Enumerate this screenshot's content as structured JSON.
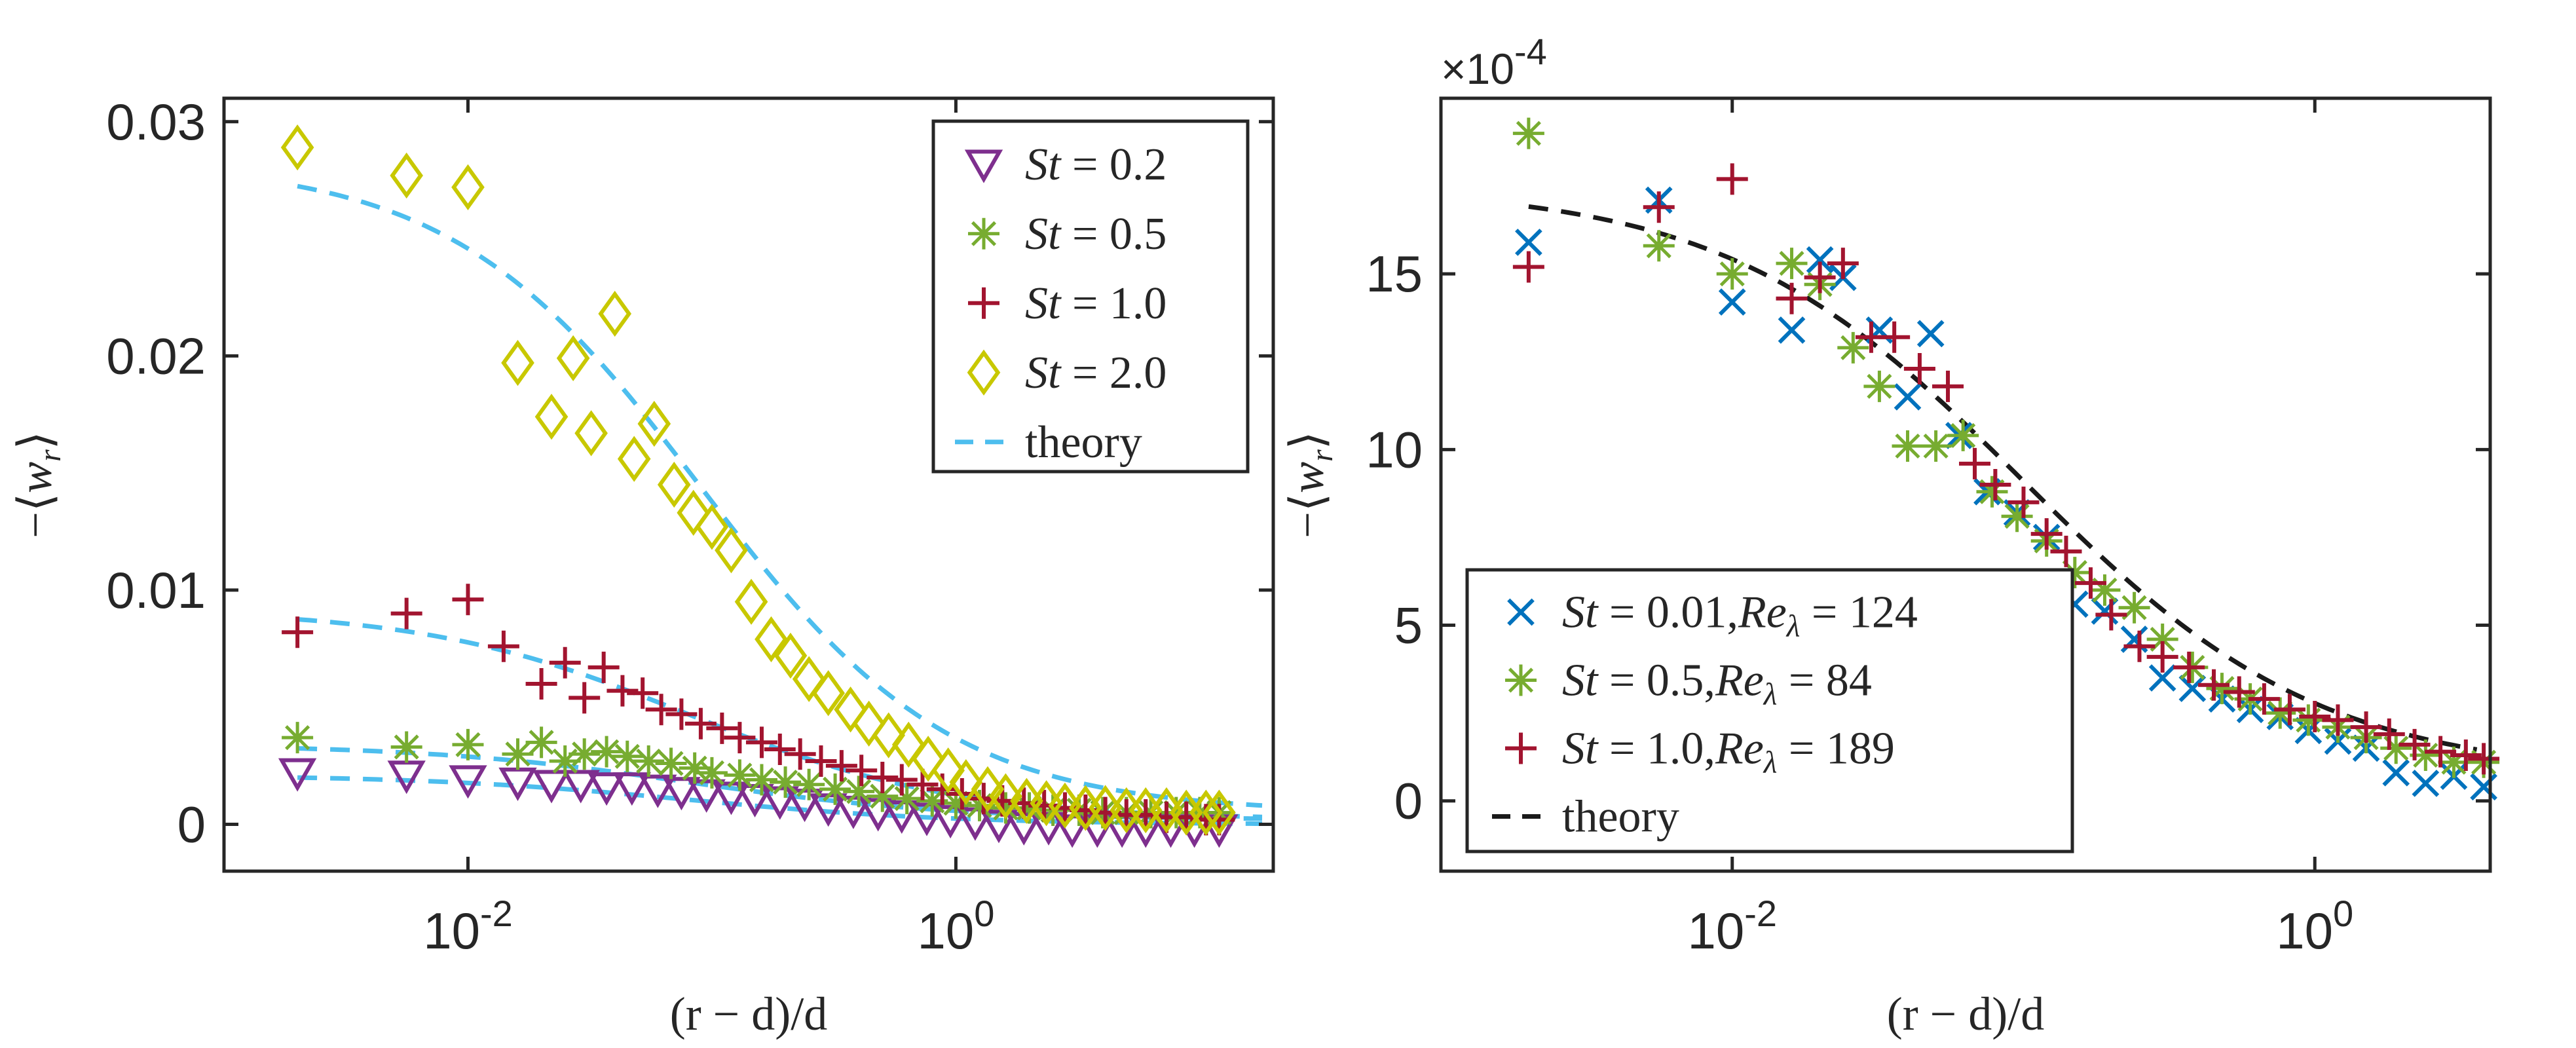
{
  "figure": {
    "background": "#ffffff",
    "axis_color": "#262626"
  },
  "chart_data": [
    {
      "type": "scatter",
      "panel": "left",
      "xscale": "log",
      "xlim": [
        0.001,
        20
      ],
      "ylim": [
        -0.002,
        0.031
      ],
      "xticks": [
        {
          "value": 0.01,
          "base": "10",
          "exp": "-2"
        },
        {
          "value": 1,
          "base": "10",
          "exp": "0"
        }
      ],
      "yticks": [
        {
          "value": 0,
          "label": "0"
        },
        {
          "value": 0.01,
          "label": "0.01"
        },
        {
          "value": 0.02,
          "label": "0.02"
        },
        {
          "value": 0.03,
          "label": "0.03"
        }
      ],
      "xlabel": "(r − d)/d",
      "ylabel_prefix": "−⟨",
      "ylabel_var": "w",
      "ylabel_sub": "r",
      "ylabel_suffix": "⟩",
      "legend_position": "top-right",
      "x": [
        0.002,
        0.0056,
        0.01,
        0.016,
        0.022,
        0.029,
        0.037,
        0.047,
        0.06,
        0.075,
        0.095,
        0.12,
        0.15,
        0.19,
        0.24,
        0.3,
        0.38,
        0.48,
        0.6,
        0.76,
        0.95,
        1.2,
        1.5,
        1.9,
        2.4,
        3.0,
        3.8,
        4.8,
        6.0,
        7.6,
        9.5,
        12.0
      ],
      "series": [
        {
          "name": "St = 0.2",
          "stlabel": "St",
          "value": "0.2",
          "marker": "triangle-down",
          "color": "#7e2f8e",
          "y": [
            0.0022,
            0.0021,
            0.0019,
            0.0018,
            0.0017,
            0.0017,
            0.0016,
            0.0016,
            0.0015,
            0.0014,
            0.0013,
            0.0012,
            0.0011,
            0.001,
            0.0009,
            0.0007,
            0.0006,
            0.0005,
            0.0004,
            0.0003,
            0.0002,
            0.0001,
            0.0,
            -0.0001,
            -0.0001,
            -0.0002,
            -0.0002,
            -0.0002,
            -0.0002,
            -0.0002,
            -0.0002,
            -0.0002
          ]
        },
        {
          "name": "St = 0.5",
          "stlabel": "St",
          "value": "0.5",
          "marker": "asterisk",
          "color": "#77ac30",
          "x": [
            0.002,
            0.0056,
            0.01,
            0.016,
            0.02,
            0.025,
            0.03,
            0.037,
            0.045,
            0.055,
            0.068,
            0.085,
            0.1,
            0.13,
            0.16,
            0.2,
            0.25,
            0.32,
            0.4,
            0.5,
            0.63,
            0.8,
            1.0,
            1.25,
            1.6,
            2.0,
            2.5,
            3.2,
            4.0,
            5.0,
            6.3,
            8.0,
            10.0,
            12.0
          ],
          "y": [
            0.0037,
            0.0033,
            0.0034,
            0.003,
            0.0035,
            0.0027,
            0.003,
            0.0031,
            0.0029,
            0.0027,
            0.0026,
            0.0024,
            0.0022,
            0.0021,
            0.0019,
            0.0018,
            0.0017,
            0.0015,
            0.0014,
            0.0012,
            0.0011,
            0.001,
            0.0009,
            0.0008,
            0.0007,
            0.0007,
            0.0006,
            0.0006,
            0.0005,
            0.0005,
            0.0005,
            0.0005,
            0.0005,
            0.0005
          ]
        },
        {
          "name": "St = 1.0",
          "stlabel": "St",
          "value": "1.0",
          "marker": "plus",
          "color": "#a2142f",
          "x": [
            0.002,
            0.0056,
            0.01,
            0.014,
            0.02,
            0.025,
            0.03,
            0.036,
            0.043,
            0.052,
            0.062,
            0.075,
            0.09,
            0.11,
            0.13,
            0.16,
            0.19,
            0.23,
            0.28,
            0.34,
            0.41,
            0.5,
            0.6,
            0.73,
            0.88,
            1.06,
            1.3,
            1.55,
            1.9,
            2.3,
            2.8,
            3.4,
            4.1,
            5.0,
            6.0,
            7.3,
            8.8,
            10.6,
            12.0
          ],
          "y": [
            0.0082,
            0.009,
            0.0096,
            0.0076,
            0.006,
            0.0069,
            0.0054,
            0.0067,
            0.0057,
            0.0056,
            0.0049,
            0.0047,
            0.0043,
            0.0041,
            0.0037,
            0.0035,
            0.0032,
            0.003,
            0.0027,
            0.0025,
            0.0023,
            0.002,
            0.0019,
            0.0017,
            0.0015,
            0.0013,
            0.0011,
            0.001,
            0.0009,
            0.0008,
            0.0007,
            0.0006,
            0.0005,
            0.0004,
            0.0004,
            0.0003,
            0.0003,
            0.0002,
            0.0002
          ]
        },
        {
          "name": "St = 2.0",
          "stlabel": "St",
          "value": "2.0",
          "marker": "diamond",
          "color": "#c8c800",
          "x": [
            0.002,
            0.0056,
            0.01,
            0.016,
            0.022,
            0.027,
            0.032,
            0.04,
            0.048,
            0.058,
            0.07,
            0.084,
            0.1,
            0.12,
            0.145,
            0.175,
            0.21,
            0.25,
            0.3,
            0.37,
            0.44,
            0.53,
            0.64,
            0.77,
            0.93,
            1.1,
            1.35,
            1.6,
            1.95,
            2.35,
            2.8,
            3.4,
            4.1,
            5.0,
            6.0,
            7.3,
            8.8,
            10.6,
            12.0
          ],
          "y": [
            0.0289,
            0.0277,
            0.0272,
            0.0197,
            0.0174,
            0.0199,
            0.0167,
            0.0218,
            0.0156,
            0.0171,
            0.0145,
            0.0133,
            0.0127,
            0.0117,
            0.0095,
            0.0079,
            0.0072,
            0.0062,
            0.0056,
            0.0049,
            0.0043,
            0.0038,
            0.0034,
            0.0028,
            0.0023,
            0.0018,
            0.0015,
            0.0012,
            0.001,
            0.0009,
            0.0008,
            0.0007,
            0.0007,
            0.0006,
            0.0006,
            0.0006,
            0.0005,
            0.0005,
            0.0005
          ]
        }
      ],
      "theory": {
        "name": "theory",
        "color": "#4dbeee",
        "curves": [
          {
            "amp": 0.0283,
            "base": 0.0005,
            "x0": 0.09,
            "p": 0.85
          },
          {
            "amp": 0.0092,
            "base": 0.0002,
            "x0": 0.08,
            "p": 0.8
          },
          {
            "amp": 0.0034,
            "base": 0.0002,
            "x0": 0.08,
            "p": 0.8
          },
          {
            "amp": 0.0021,
            "base": 0.0,
            "x0": 0.08,
            "p": 0.8
          }
        ]
      }
    },
    {
      "type": "scatter",
      "panel": "right",
      "xscale": "log",
      "xlim": [
        0.001,
        4
      ],
      "ylim": [
        -2,
        20
      ],
      "scale_label_prefix": "×",
      "scale_label_base": "10",
      "scale_label_exp": "-4",
      "xticks": [
        {
          "value": 0.01,
          "base": "10",
          "exp": "-2"
        },
        {
          "value": 1,
          "base": "10",
          "exp": "0"
        }
      ],
      "yticks": [
        {
          "value": 0,
          "label": "0"
        },
        {
          "value": 5,
          "label": "5"
        },
        {
          "value": 10,
          "label": "10"
        },
        {
          "value": 15,
          "label": "15"
        }
      ],
      "xlabel": "(r − d)/d",
      "ylabel_prefix": "−⟨",
      "ylabel_var": "w",
      "ylabel_sub": "r",
      "ylabel_suffix": "⟩",
      "legend_position": "bottom-left",
      "series": [
        {
          "name": "St = 0.01, Re_λ = 124",
          "stlabel": "St",
          "value": "0.01",
          "relabel": "Re",
          "resub": "λ",
          "revalue": "124",
          "marker": "cross",
          "color": "#0072bd",
          "x": [
            0.002,
            0.0056,
            0.01,
            0.016,
            0.02,
            0.024,
            0.032,
            0.04,
            0.048,
            0.06,
            0.075,
            0.095,
            0.12,
            0.15,
            0.19,
            0.24,
            0.3,
            0.38,
            0.48,
            0.6,
            0.76,
            0.95,
            1.2,
            1.5,
            1.9,
            2.4,
            3.0,
            3.8
          ],
          "y": [
            15.9,
            17.1,
            14.2,
            13.4,
            15.4,
            14.9,
            13.4,
            11.5,
            13.3,
            10.4,
            8.8,
            8.2,
            7.5,
            5.6,
            5.4,
            4.6,
            3.5,
            3.2,
            2.9,
            2.6,
            2.4,
            2.0,
            1.7,
            1.5,
            0.8,
            0.5,
            0.7,
            0.4
          ]
        },
        {
          "name": "St = 0.5, Re_λ = 84",
          "stlabel": "St",
          "value": "0.5",
          "relabel": "Re",
          "resub": "λ",
          "revalue": "84",
          "marker": "asterisk",
          "color": "#77ac30",
          "x": [
            0.002,
            0.0056,
            0.01,
            0.016,
            0.02,
            0.026,
            0.032,
            0.04,
            0.05,
            0.062,
            0.078,
            0.095,
            0.12,
            0.15,
            0.19,
            0.24,
            0.3,
            0.38,
            0.48,
            0.6,
            0.76,
            0.95,
            1.2,
            1.5,
            1.9,
            2.4,
            3.0,
            3.8
          ],
          "y": [
            19.0,
            15.8,
            15.0,
            15.3,
            14.7,
            12.9,
            11.8,
            10.1,
            10.1,
            10.4,
            8.8,
            8.1,
            7.4,
            6.5,
            6.0,
            5.5,
            4.6,
            3.8,
            3.2,
            2.9,
            2.5,
            2.3,
            2.1,
            1.8,
            1.5,
            1.3,
            1.1,
            1.1
          ]
        },
        {
          "name": "St = 1.0, Re_λ = 189",
          "stlabel": "St",
          "value": "1.0",
          "relabel": "Re",
          "resub": "λ",
          "revalue": "189",
          "marker": "plus",
          "color": "#a2142f",
          "x": [
            0.002,
            0.0056,
            0.01,
            0.016,
            0.02,
            0.024,
            0.03,
            0.036,
            0.044,
            0.055,
            0.068,
            0.08,
            0.1,
            0.12,
            0.14,
            0.17,
            0.2,
            0.25,
            0.3,
            0.37,
            0.45,
            0.55,
            0.67,
            0.82,
            1.0,
            1.2,
            1.5,
            1.8,
            2.2,
            2.7,
            3.3,
            3.8
          ],
          "y": [
            15.2,
            16.9,
            17.7,
            14.3,
            14.9,
            15.3,
            13.2,
            13.2,
            12.3,
            11.8,
            9.6,
            9.0,
            8.5,
            7.6,
            7.1,
            6.2,
            5.3,
            4.4,
            4.1,
            3.8,
            3.3,
            3.1,
            2.9,
            2.6,
            2.4,
            2.3,
            2.1,
            1.9,
            1.6,
            1.4,
            1.3,
            1.2
          ]
        }
      ],
      "theory": {
        "name": "theory",
        "color": "#1a1a1a",
        "curves": [
          {
            "amp": 17.5,
            "base": 0.7,
            "x0": 0.1,
            "p": 0.85
          }
        ]
      }
    }
  ]
}
